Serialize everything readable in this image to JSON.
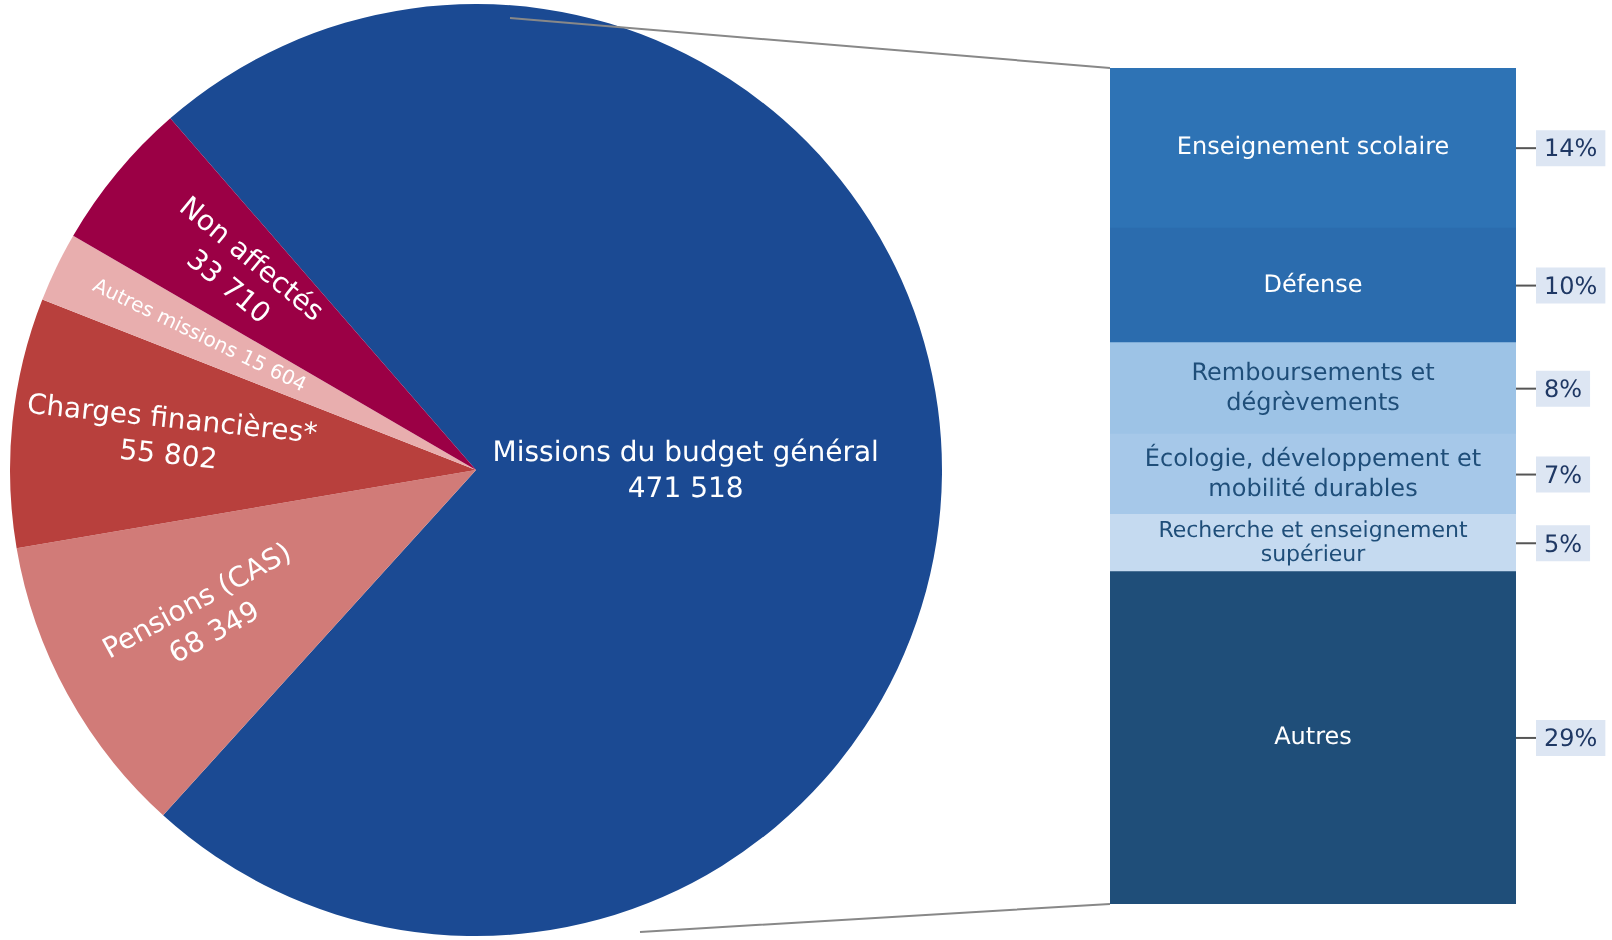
{
  "chart_data": [
    {
      "type": "pie",
      "categories": [
        "Missions du budget général",
        "Pensions (CAS)",
        "Charges financières*",
        "Autres missions",
        "Non affectés"
      ],
      "values": [
        471518,
        68349,
        55802,
        15604,
        33710
      ],
      "colors": [
        "#1b4a93",
        "#d17b78",
        "#b8403d",
        "#e8aeae",
        "#9b0045"
      ],
      "value_labels": [
        "471 518",
        "68 349",
        "55 802",
        "15 604",
        "33 710"
      ]
    },
    {
      "type": "bar",
      "stacked": true,
      "tick_labels": false,
      "categories": [
        null
      ],
      "series": [
        {
          "name": "Autres",
          "color": "#1f4e79",
          "values": [
            29
          ],
          "value_labels": [
            "29%"
          ]
        },
        {
          "name": "Recherche et enseignement supérieur",
          "color": "#c5daf0",
          "values": [
            5
          ],
          "value_labels": [
            "5%"
          ]
        },
        {
          "name": "Écologie, développement et mobilité durables",
          "color": "#a6c8e9",
          "values": [
            7
          ],
          "value_labels": [
            "7%"
          ]
        },
        {
          "name": "Remboursements et dégrèvements",
          "color": "#9dc3e6",
          "values": [
            8
          ],
          "value_labels": [
            "8%"
          ]
        },
        {
          "name": "Défense",
          "color": "#2b6cae",
          "values": [
            10
          ],
          "value_labels": [
            "10%"
          ]
        },
        {
          "name": "Enseignement scolaire",
          "color": "#2e73b5",
          "values": [
            14
          ],
          "value_labels": [
            "14%"
          ]
        }
      ]
    }
  ]
}
